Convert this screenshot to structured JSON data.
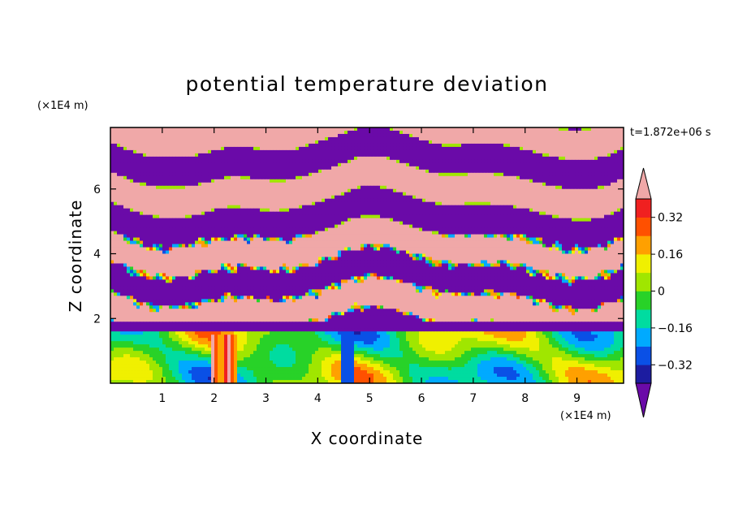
{
  "chart_data": {
    "type": "heatmap",
    "title": "potential temperature deviation",
    "xlabel": "X coordinate",
    "ylabel": "Z coordinate",
    "x_unit": "(×1E4 m)",
    "y_unit": "(×1E4 m)",
    "time_label": "t=1.872e+06 s",
    "xlim": [
      0,
      9.9
    ],
    "ylim": [
      0,
      7.9
    ],
    "x_ticks": [
      1,
      2,
      3,
      4,
      5,
      6,
      7,
      8,
      9
    ],
    "y_ticks": [
      2,
      4,
      6
    ],
    "colorbar": {
      "levels": [
        -0.4,
        -0.32,
        -0.24,
        -0.16,
        -0.08,
        0,
        0.08,
        0.16,
        0.24,
        0.32,
        0.4
      ],
      "tick_values": [
        -0.32,
        -0.16,
        0,
        0.16,
        0.32
      ],
      "tick_labels": [
        "−0.32",
        "−0.16",
        "0",
        "0.16",
        "0.32"
      ],
      "colors": [
        "#6a0aa8",
        "#1c1ca0",
        "#0a50e6",
        "#00aaff",
        "#00dca0",
        "#28d228",
        "#a0e600",
        "#f0f000",
        "#ffa000",
        "#ff5000",
        "#f02020",
        "#f0a8a8"
      ],
      "extend": "both"
    }
  }
}
